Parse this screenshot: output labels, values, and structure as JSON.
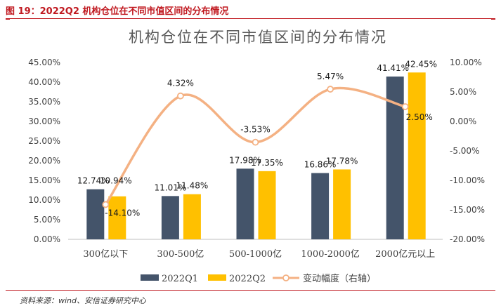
{
  "figure": {
    "label": "图 19：2022Q2 机构仓位在不同市值区间的分布情况",
    "source": "资料来源：wind、安信证券研究中心",
    "accent_color": "#c0181f"
  },
  "chart_data": {
    "type": "bar",
    "title": "机构仓位在不同市值区间的分布情况",
    "categories": [
      "300亿以下",
      "300-500亿",
      "500-1000亿",
      "1000-2000亿",
      "2000亿元以上"
    ],
    "series": [
      {
        "name": "2022Q1",
        "kind": "bar",
        "axis": "left",
        "color": "#44546a",
        "values": [
          12.74,
          11.01,
          17.98,
          16.86,
          41.41
        ],
        "labels": [
          "12.74%",
          "11.01%",
          "17.98%",
          "16.86%",
          "41.41%"
        ]
      },
      {
        "name": "2022Q2",
        "kind": "bar",
        "axis": "left",
        "color": "#ffc000",
        "values": [
          10.94,
          11.48,
          17.35,
          17.78,
          42.45
        ],
        "labels": [
          "10.94%",
          "11.48%",
          "17.35%",
          "17.78%",
          "42.45%"
        ]
      },
      {
        "name": "变动幅度（右轴）",
        "kind": "line",
        "axis": "right",
        "color": "#f4b183",
        "values": [
          -14.1,
          4.32,
          -3.53,
          5.47,
          2.5
        ],
        "labels": [
          "-14.10%",
          "4.32%",
          "-3.53%",
          "5.47%",
          "2.50%"
        ]
      }
    ],
    "y_left": {
      "min": 0,
      "max": 45,
      "step": 5,
      "ticks": [
        "0.00%",
        "5.00%",
        "10.00%",
        "15.00%",
        "20.00%",
        "25.00%",
        "30.00%",
        "35.00%",
        "40.00%",
        "45.00%"
      ]
    },
    "y_right": {
      "min": -20,
      "max": 10,
      "step": 5,
      "ticks": [
        "-20.00%",
        "-15.00%",
        "-10.00%",
        "-5.00%",
        "0.00%",
        "5.00%",
        "10.00%"
      ]
    },
    "grid": false,
    "legend_position": "bottom"
  }
}
